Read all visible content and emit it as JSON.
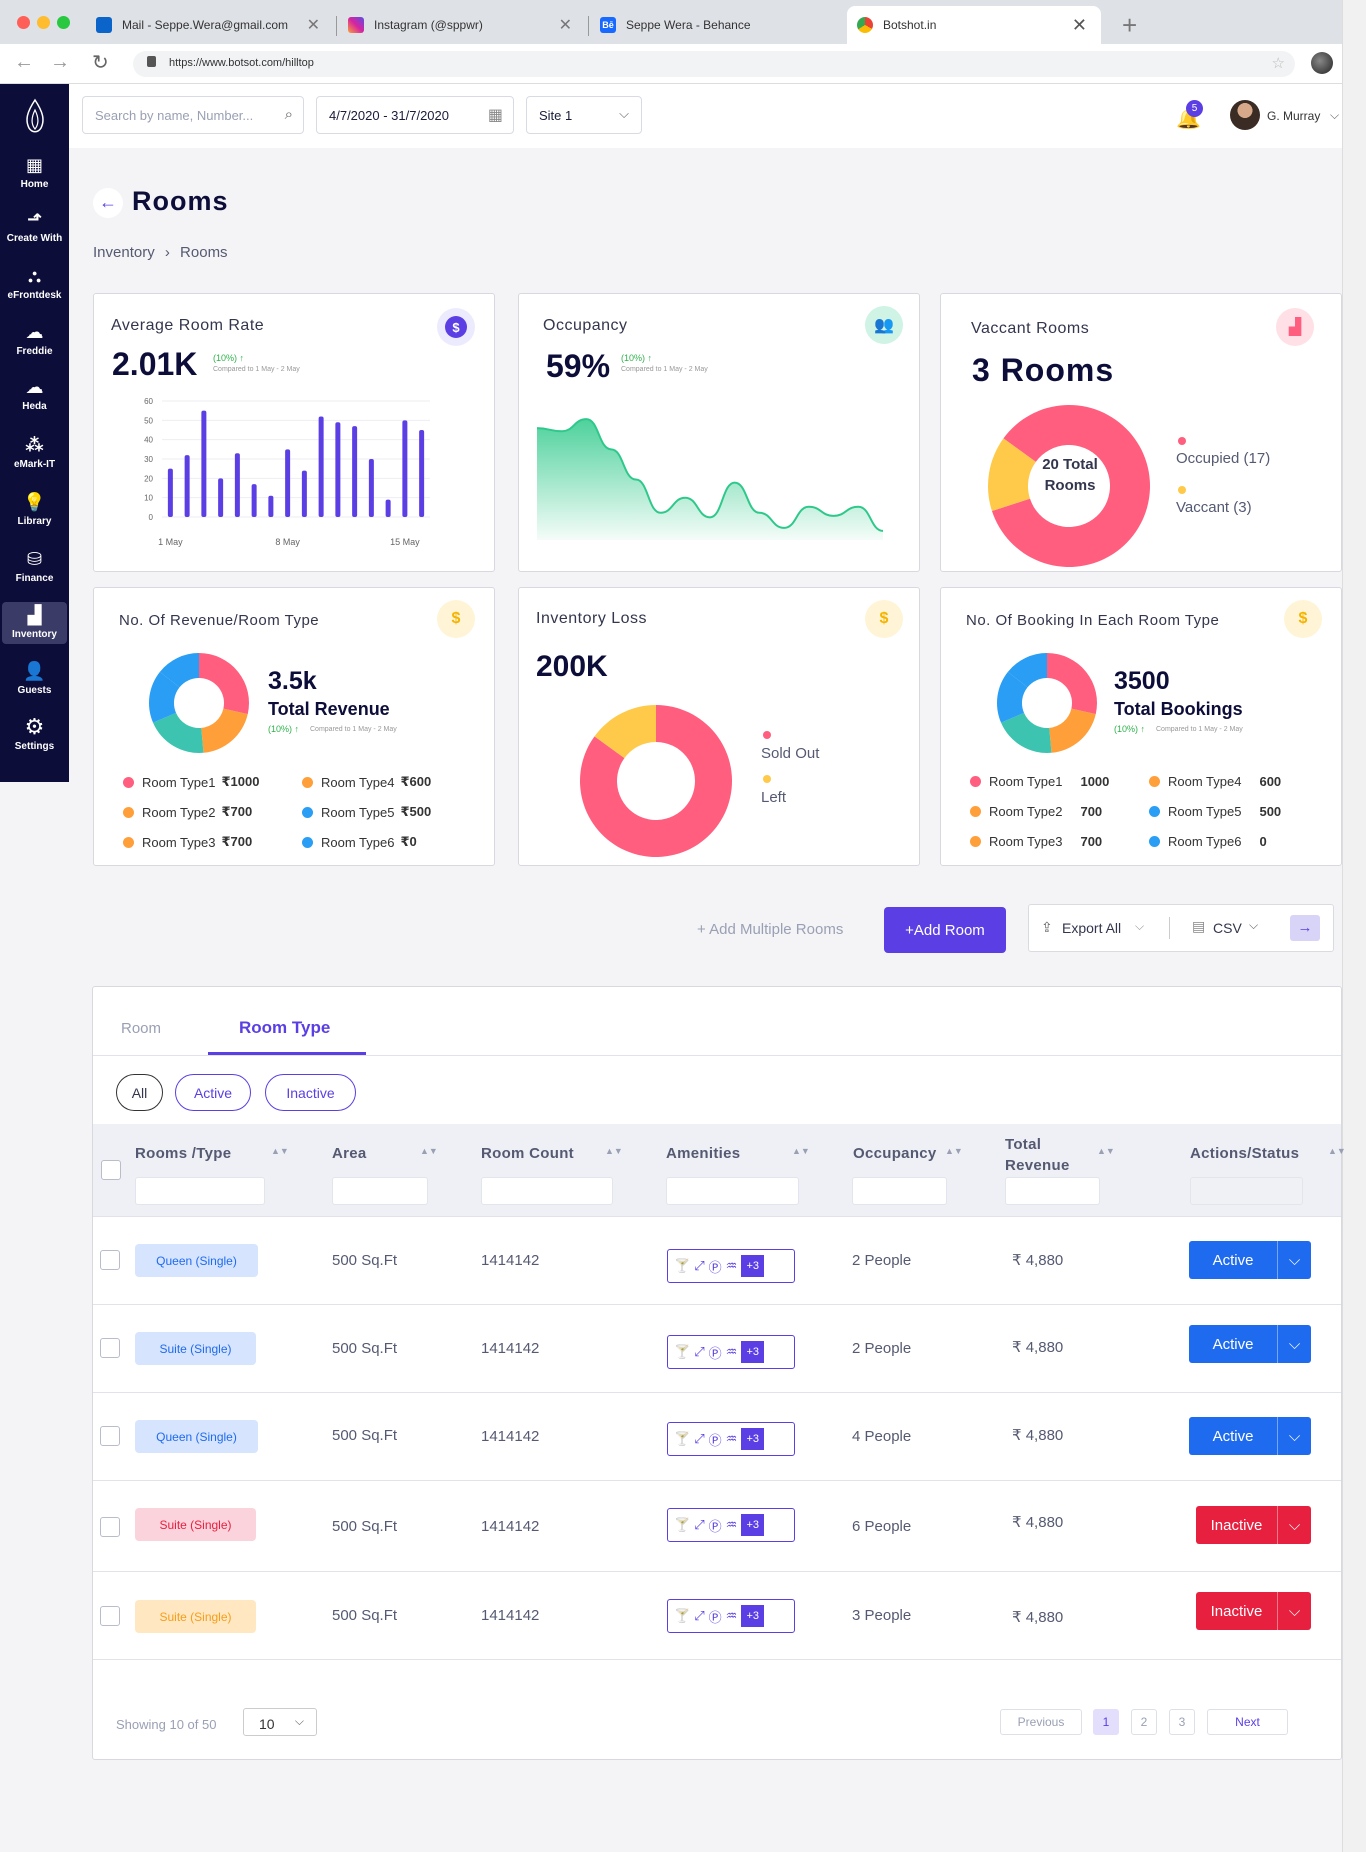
{
  "browser": {
    "tabs": [
      {
        "label": "Mail - Seppe.Wera@gmail.com"
      },
      {
        "label": "Instagram (@sppwr)"
      },
      {
        "label": "Seppe Wera - Behance"
      },
      {
        "label": "Botshot.in"
      }
    ],
    "url": "https://www.botsot.com/hilltop"
  },
  "sidebar": {
    "items": [
      {
        "label": "Home",
        "icon": "grid-icon"
      },
      {
        "label": "Create With",
        "icon": "create-icon"
      },
      {
        "label": "eFrontdesk",
        "icon": "frontdesk-icon"
      },
      {
        "label": "Freddie",
        "icon": "cloud-icon"
      },
      {
        "label": "Heda",
        "icon": "cloud-icon"
      },
      {
        "label": "eMark-IT",
        "icon": "network-icon"
      },
      {
        "label": "Library",
        "icon": "bulb-icon"
      },
      {
        "label": "Finance",
        "icon": "coins-icon"
      },
      {
        "label": "Inventory",
        "icon": "inventory-icon"
      },
      {
        "label": "Guests",
        "icon": "user-icon"
      },
      {
        "label": "Settings",
        "icon": "gear-icon"
      }
    ]
  },
  "header": {
    "search_placeholder": "Search by name, Number...",
    "date_range": "4/7/2020 - 31/7/2020",
    "site": "Site 1",
    "notifications": "5",
    "user": "G. Murray"
  },
  "page": {
    "title": "Rooms",
    "breadcrumb": [
      "Inventory",
      "Rooms"
    ]
  },
  "cards": {
    "avg_rate": {
      "title": "Average Room Rate",
      "value": "2.01K",
      "change": "(10%)",
      "compare": "Compared to 1 May - 2 May"
    },
    "occupancy": {
      "title": "Occupancy",
      "value": "59%",
      "change": "(10%)",
      "compare": "Compared to 1 May - 2 May"
    },
    "vacant": {
      "title": "Vaccant Rooms",
      "value": "3 Rooms",
      "center": "20 Total Rooms",
      "legend": [
        "Occupied (17)",
        "Vaccant (3)"
      ]
    },
    "revenue": {
      "title": "No. Of Revenue/Room Type",
      "value": "3.5k",
      "label": "Total Revenue",
      "change": "(10%)",
      "compare": "Compared to 1 May - 2 May",
      "legend": [
        {
          "name": "Room Type1",
          "value": "₹1000"
        },
        {
          "name": "Room Type4",
          "value": "₹600"
        },
        {
          "name": "Room Type2",
          "value": "₹700"
        },
        {
          "name": "Room Type5",
          "value": "₹500"
        },
        {
          "name": "Room Type3",
          "value": "₹700"
        },
        {
          "name": "Room Type6",
          "value": "₹0"
        }
      ]
    },
    "loss": {
      "title": "Inventory Loss",
      "value": "200K",
      "legend": [
        "Sold Out",
        "Left"
      ]
    },
    "bookings": {
      "title": "No. Of Booking In Each Room Type",
      "value": "3500",
      "label": "Total Bookings",
      "change": "(10%)",
      "compare": "Compared to 1 May - 2 May",
      "legend": [
        {
          "name": "Room Type1",
          "value": "1000"
        },
        {
          "name": "Room Type4",
          "value": "600"
        },
        {
          "name": "Room Type2",
          "value": "700"
        },
        {
          "name": "Room Type5",
          "value": "500"
        },
        {
          "name": "Room Type3",
          "value": "700"
        },
        {
          "name": "Room Type6",
          "value": "0"
        }
      ]
    }
  },
  "actions": {
    "add_multiple": "+ Add Multiple Rooms",
    "add_room": "+Add Room",
    "export": "Export All",
    "csv": "CSV"
  },
  "table": {
    "tabs": [
      "Room",
      "Room Type"
    ],
    "filters": [
      "All",
      "Active",
      "Inactive"
    ],
    "columns": [
      "Rooms /Type",
      "Area",
      "Room Count",
      "Amenities",
      "Occupancy",
      "Total Revenue",
      "Actions/Status"
    ],
    "amenity_more": "+3",
    "rows": [
      {
        "type": "Queen (Single)",
        "area": "500 Sq.Ft",
        "count": "1414142",
        "occupancy": "2 People",
        "revenue": "₹ 4,880",
        "status": "Active"
      },
      {
        "type": "Suite (Single)",
        "area": "500 Sq.Ft",
        "count": "1414142",
        "occupancy": "2 People",
        "revenue": "₹ 4,880",
        "status": "Active"
      },
      {
        "type": "Queen (Single)",
        "area": "500 Sq.Ft",
        "count": "1414142",
        "occupancy": "4 People",
        "revenue": "₹ 4,880",
        "status": "Active"
      },
      {
        "type": "Suite (Single)",
        "area": "500 Sq.Ft",
        "count": "1414142",
        "occupancy": "6 People",
        "revenue": "₹ 4,880",
        "status": "Inactive"
      },
      {
        "type": "Suite (Single)",
        "area": "500 Sq.Ft",
        "count": "1414142",
        "occupancy": "3 People",
        "revenue": "₹ 4,880",
        "status": "Inactive"
      }
    ],
    "showing": "Showing 10 of 50",
    "page_size": "10",
    "pagination": {
      "prev": "Previous",
      "pages": [
        "1",
        "2",
        "3"
      ],
      "next": "Next"
    }
  },
  "colors": {
    "primary": "#5b3fe4",
    "active": "#1f6bf0",
    "inactive": "#e8203f",
    "green": "#2ec98a",
    "pink": "#ff5e7e",
    "yellow": "#ffc94a",
    "sidebar": "#0d0d3a"
  },
  "chart_data": [
    {
      "type": "bar",
      "title": "Average Room Rate",
      "x": [
        "1 May",
        "2 May",
        "3 May",
        "4 May",
        "5 May",
        "6 May",
        "7 May",
        "8 May",
        "9 May",
        "10 May",
        "11 May",
        "12 May",
        "13 May",
        "14 May",
        "15 May",
        "16 May"
      ],
      "xticks": [
        "1 May",
        "8 May",
        "15 May"
      ],
      "values": [
        25,
        32,
        55,
        20,
        33,
        17,
        11,
        35,
        24,
        52,
        49,
        47,
        30,
        9,
        50,
        45
      ],
      "ylim": [
        0,
        60
      ],
      "yticks": [
        0,
        10,
        20,
        30,
        40,
        50,
        60
      ]
    },
    {
      "type": "area",
      "title": "Occupancy",
      "values": [
        74,
        72,
        80,
        60,
        40,
        18,
        28,
        15,
        38,
        18,
        8,
        22,
        16,
        22,
        6
      ]
    },
    {
      "type": "pie",
      "title": "Vaccant Rooms",
      "categories": [
        "Occupied",
        "Vaccant"
      ],
      "values": [
        17,
        3
      ]
    },
    {
      "type": "pie",
      "title": "No. Of Revenue/Room Type",
      "categories": [
        "Room Type1",
        "Room Type2",
        "Room Type3",
        "Room Type4",
        "Room Type5",
        "Room Type6"
      ],
      "values": [
        1000,
        700,
        700,
        600,
        500,
        0
      ]
    },
    {
      "type": "pie",
      "title": "Inventory Loss",
      "categories": [
        "Sold Out",
        "Left"
      ],
      "values": [
        85,
        15
      ]
    },
    {
      "type": "pie",
      "title": "No. Of Booking In Each Room Type",
      "categories": [
        "Room Type1",
        "Room Type2",
        "Room Type3",
        "Room Type4",
        "Room Type5",
        "Room Type6"
      ],
      "values": [
        1000,
        700,
        700,
        600,
        500,
        0
      ]
    }
  ]
}
